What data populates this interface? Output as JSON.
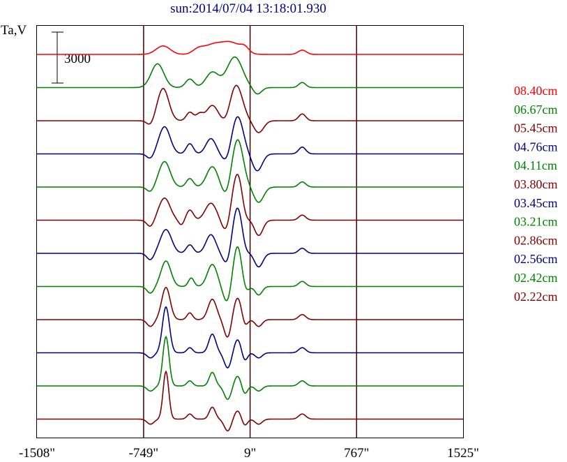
{
  "chart_data": {
    "type": "line",
    "title": "sun:2014/07/04 13:18:01.930",
    "ylabel": "Ta,V",
    "scale_bar_label": "3000",
    "x_ticks": [
      "-1508\"",
      "-749\"",
      "9\"",
      "767\"",
      "1525\""
    ],
    "x_tick_values": [
      -1508,
      -749,
      9,
      767,
      1525
    ],
    "xlim": [
      -1508,
      1525
    ],
    "vertical_lines": [
      -749,
      9,
      767
    ],
    "legend_position": "right",
    "series": [
      {
        "name": "08.40cm",
        "color": "#ff0000",
        "peaks": [
          [
            -610,
            500,
            50
          ],
          [
            -360,
            300,
            40
          ],
          [
            -260,
            500,
            60
          ],
          [
            -130,
            700,
            70
          ],
          [
            -30,
            300,
            30
          ],
          [
            380,
            250,
            30
          ]
        ]
      },
      {
        "name": "06.67cm",
        "color": "#008000",
        "peaks": [
          [
            -650,
            1400,
            45
          ],
          [
            -420,
            500,
            30
          ],
          [
            -260,
            900,
            45
          ],
          [
            -100,
            1800,
            55
          ],
          [
            60,
            -400,
            30
          ],
          [
            380,
            300,
            25
          ]
        ]
      },
      {
        "name": "05.45cm",
        "color": "#800000",
        "peaks": [
          [
            -700,
            -300,
            25
          ],
          [
            -610,
            1900,
            40
          ],
          [
            -420,
            500,
            25
          ],
          [
            -350,
            400,
            25
          ],
          [
            -260,
            900,
            40
          ],
          [
            -160,
            -300,
            30
          ],
          [
            -90,
            2100,
            45
          ],
          [
            70,
            -700,
            35
          ],
          [
            380,
            400,
            25
          ]
        ]
      },
      {
        "name": "04.76cm",
        "color": "#000080",
        "peaks": [
          [
            -700,
            -300,
            25
          ],
          [
            -600,
            1600,
            40
          ],
          [
            -420,
            600,
            25
          ],
          [
            -270,
            900,
            35
          ],
          [
            -160,
            -500,
            30
          ],
          [
            -80,
            2200,
            40
          ],
          [
            60,
            -1000,
            35
          ],
          [
            380,
            400,
            25
          ]
        ]
      },
      {
        "name": "04.11cm",
        "color": "#008000",
        "peaks": [
          [
            -700,
            -300,
            25
          ],
          [
            -600,
            1500,
            40
          ],
          [
            -420,
            500,
            25
          ],
          [
            -260,
            1200,
            40
          ],
          [
            -160,
            -600,
            30
          ],
          [
            -80,
            2800,
            40
          ],
          [
            70,
            -900,
            35
          ],
          [
            380,
            300,
            25
          ]
        ]
      },
      {
        "name": "03.80cm",
        "color": "#800000",
        "peaks": [
          [
            -700,
            -400,
            25
          ],
          [
            -600,
            1300,
            40
          ],
          [
            -480,
            -300,
            20
          ],
          [
            -420,
            600,
            25
          ],
          [
            -270,
            1000,
            40
          ],
          [
            -160,
            -800,
            30
          ],
          [
            -80,
            2800,
            40
          ],
          [
            -30,
            -600,
            25
          ],
          [
            70,
            -900,
            30
          ],
          [
            380,
            300,
            25
          ]
        ]
      },
      {
        "name": "03.45cm",
        "color": "#000080",
        "peaks": [
          [
            -700,
            -400,
            25
          ],
          [
            -590,
            1400,
            40
          ],
          [
            -420,
            500,
            25
          ],
          [
            -270,
            1100,
            35
          ],
          [
            -150,
            -900,
            30
          ],
          [
            -80,
            2800,
            40
          ],
          [
            -30,
            -600,
            25
          ],
          [
            70,
            -800,
            30
          ],
          [
            380,
            300,
            25
          ]
        ]
      },
      {
        "name": "03.21cm",
        "color": "#008000",
        "peaks": [
          [
            -700,
            -400,
            25
          ],
          [
            -590,
            1500,
            35
          ],
          [
            -410,
            500,
            20
          ],
          [
            -260,
            1300,
            35
          ],
          [
            -150,
            -1100,
            30
          ],
          [
            -80,
            2500,
            35
          ],
          [
            -30,
            -700,
            25
          ],
          [
            70,
            -500,
            25
          ],
          [
            380,
            300,
            25
          ]
        ]
      },
      {
        "name": "02.86cm",
        "color": "#800000",
        "peaks": [
          [
            -700,
            -400,
            25
          ],
          [
            -590,
            1900,
            30
          ],
          [
            -420,
            400,
            20
          ],
          [
            -260,
            1200,
            30
          ],
          [
            -150,
            -1100,
            25
          ],
          [
            -80,
            1300,
            30
          ],
          [
            -30,
            -500,
            20
          ],
          [
            70,
            -400,
            25
          ],
          [
            380,
            300,
            25
          ]
        ]
      },
      {
        "name": "02.56cm",
        "color": "#000080",
        "peaks": [
          [
            -700,
            -300,
            25
          ],
          [
            -590,
            2700,
            25
          ],
          [
            -420,
            300,
            20
          ],
          [
            -260,
            1100,
            25
          ],
          [
            -150,
            -900,
            25
          ],
          [
            -80,
            800,
            25
          ],
          [
            -30,
            -500,
            20
          ],
          [
            70,
            -300,
            25
          ],
          [
            380,
            300,
            25
          ]
        ]
      },
      {
        "name": "02.42cm",
        "color": "#008000",
        "peaks": [
          [
            -700,
            -300,
            25
          ],
          [
            -590,
            2900,
            22
          ],
          [
            -420,
            300,
            20
          ],
          [
            -260,
            800,
            22
          ],
          [
            -150,
            -800,
            25
          ],
          [
            -80,
            600,
            25
          ],
          [
            -30,
            -500,
            20
          ],
          [
            70,
            -300,
            25
          ],
          [
            380,
            300,
            25
          ]
        ]
      },
      {
        "name": "02.22cm",
        "color": "#800000",
        "peaks": [
          [
            -700,
            -300,
            25
          ],
          [
            -590,
            2800,
            20
          ],
          [
            -420,
            300,
            20
          ],
          [
            -260,
            700,
            22
          ],
          [
            -150,
            -700,
            25
          ],
          [
            -80,
            500,
            25
          ],
          [
            -30,
            -400,
            20
          ],
          [
            70,
            -300,
            25
          ],
          [
            380,
            300,
            25
          ]
        ]
      }
    ]
  }
}
